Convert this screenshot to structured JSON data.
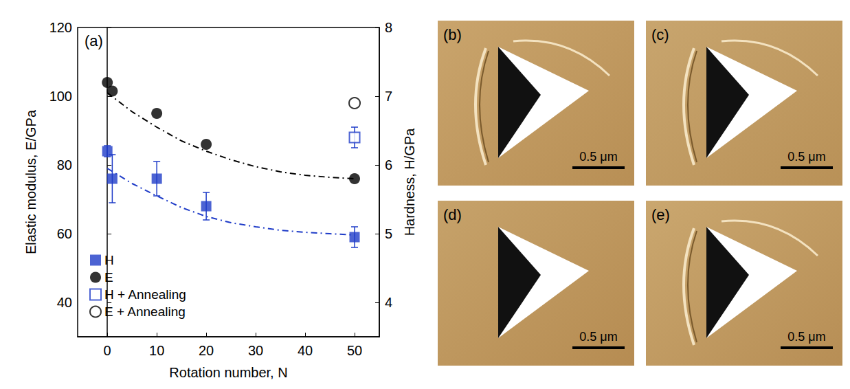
{
  "chart_data": {
    "type": "scatter",
    "annotations": [
      "(a)"
    ],
    "x_label": "Rotation number, N",
    "y_label": "Elastic modulus, E/GPa",
    "y2_label": "Hardness, H/GPa",
    "xlim": [
      -6,
      55
    ],
    "xticks": [
      0,
      10,
      20,
      30,
      40,
      50
    ],
    "ylim": [
      30,
      120
    ],
    "yticks": [
      40,
      60,
      80,
      100,
      120
    ],
    "y2lim": [
      3.5,
      8
    ],
    "y2ticks": [
      4,
      5,
      6,
      7,
      8
    ],
    "grid": false,
    "legend": "lower left",
    "series": [
      {
        "name": "H",
        "type": "scatter",
        "axis": "y2",
        "color": "#1f3cc8",
        "marker": "square",
        "x": [
          0,
          1,
          10,
          20,
          50
        ],
        "values": [
          6.2,
          5.8,
          5.8,
          5.4,
          4.95
        ],
        "errors": [
          0.08,
          0.35,
          0.25,
          0.2,
          0.15
        ]
      },
      {
        "name": "E",
        "type": "scatter",
        "color": "#000000",
        "marker": "circle",
        "x": [
          0,
          1,
          10,
          20,
          50
        ],
        "values": [
          104,
          101.5,
          95,
          86,
          76
        ]
      },
      {
        "name": "H + Annealing",
        "type": "scatter",
        "axis": "y2",
        "color": "#1f3cc8",
        "marker": "open_square",
        "x": [
          50
        ],
        "values": [
          6.4
        ],
        "errors": [
          0.15
        ]
      },
      {
        "name": "E + Annealing",
        "type": "scatter",
        "color": "#000000",
        "marker": "open_circle",
        "x": [
          50
        ],
        "values": [
          98
        ]
      },
      {
        "type": "line",
        "color": "#000000",
        "line_style": "dashdot",
        "x": [
          0,
          5,
          10,
          15,
          20,
          25,
          30,
          35,
          40,
          45,
          50
        ],
        "values": [
          101,
          95.5,
          91,
          87,
          84,
          81.5,
          79.5,
          78,
          77,
          76.4,
          76
        ]
      },
      {
        "type": "line",
        "axis": "y2",
        "color": "#1f3cc8",
        "line_style": "dashdot",
        "x": [
          0,
          5,
          10,
          15,
          20,
          25,
          30,
          35,
          40,
          45,
          50
        ],
        "values": [
          5.95,
          5.73,
          5.55,
          5.38,
          5.25,
          5.16,
          5.1,
          5.05,
          5.02,
          5.0,
          4.98
        ]
      }
    ]
  },
  "images": [
    {
      "label": "(b)",
      "scale_bar": "0.5 μm"
    },
    {
      "label": "(c)",
      "scale_bar": "0.5 μm"
    },
    {
      "label": "(d)",
      "scale_bar": "0.5 μm"
    },
    {
      "label": "(e)",
      "scale_bar": "0.5 μm"
    }
  ]
}
